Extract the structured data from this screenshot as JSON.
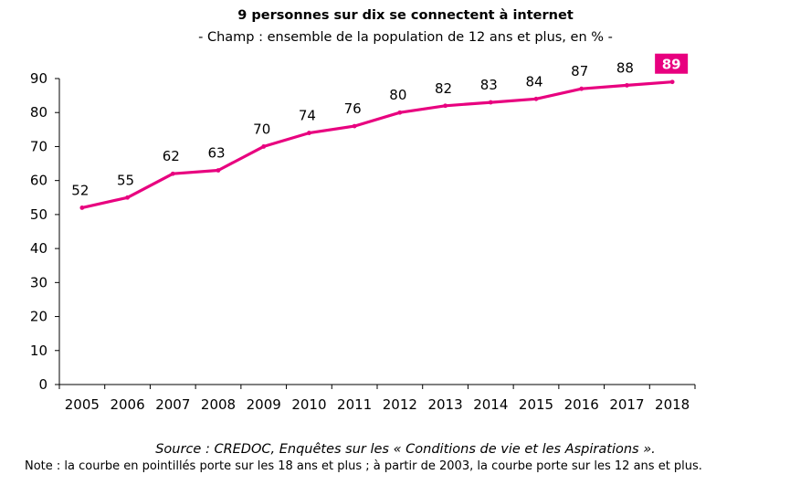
{
  "chart_data": {
    "type": "line",
    "title": "9 personnes sur dix se connectent à internet",
    "subtitle": "- Champ : ensemble de la population de 12 ans et plus, en % -",
    "xlabel": "",
    "ylabel": "",
    "x": [
      "2005",
      "2006",
      "2007",
      "2008",
      "2009",
      "2010",
      "2011",
      "2012",
      "2013",
      "2014",
      "2015",
      "2016",
      "2017",
      "2018"
    ],
    "series": [
      {
        "values": [
          52,
          55,
          62,
          63,
          70,
          74,
          76,
          80,
          82,
          83,
          84,
          87,
          88,
          89
        ],
        "color": "#e8007f"
      }
    ],
    "ylim": [
      0,
      90
    ],
    "yticks": [
      0,
      10,
      20,
      30,
      40,
      50,
      60,
      70,
      80,
      90
    ],
    "grid": false,
    "legend": "none",
    "highlight": {
      "index": 13,
      "label": "89",
      "color": "#e8007f"
    }
  },
  "source": "Source : CREDOC, Enquêtes sur les « Conditions de vie et les Aspirations ».",
  "note": "Note : la courbe en pointillés porte sur les 18 ans et plus ; à partir de 2003, la courbe porte sur les 12 ans et plus."
}
